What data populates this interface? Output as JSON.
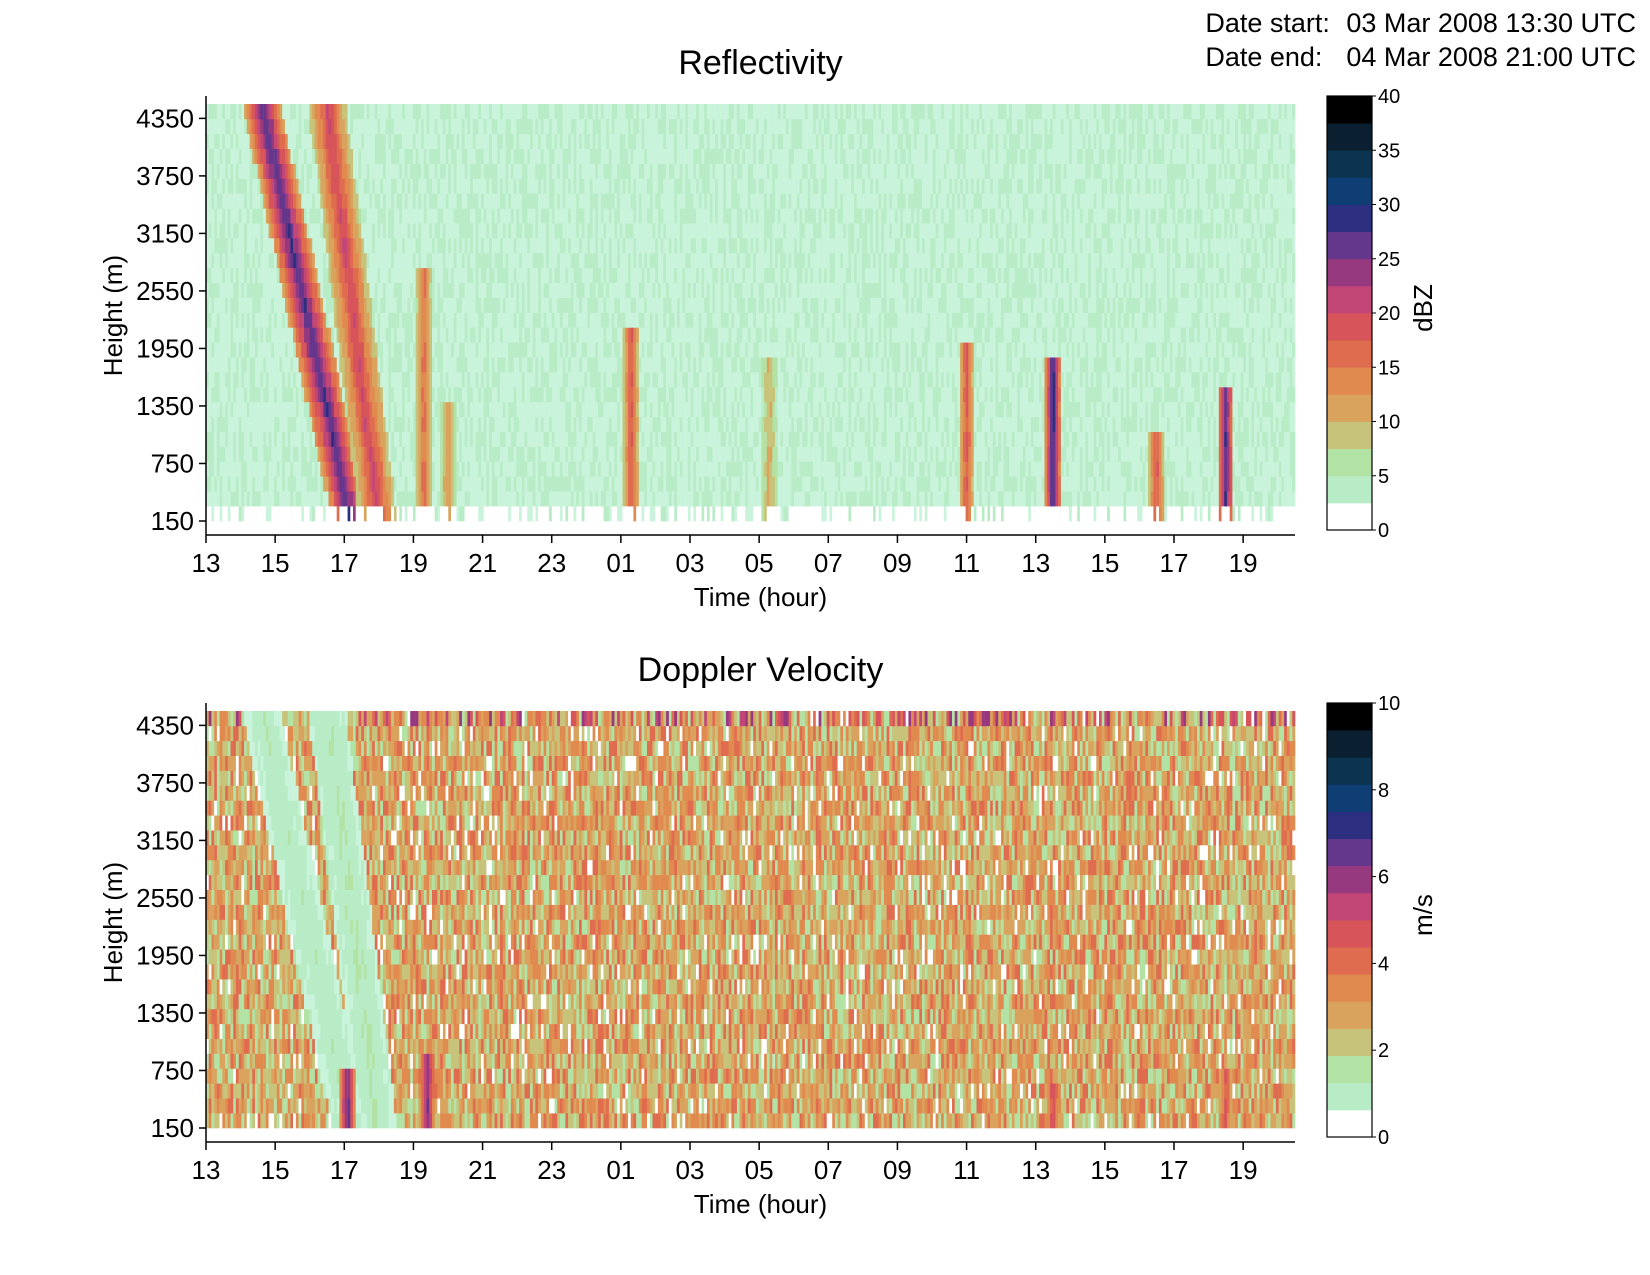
{
  "header": {
    "date_start_label": "Date start:",
    "date_start_value": "03 Mar 2008 13:30 UTC",
    "date_end_label": "Date end:",
    "date_end_value": "04 Mar 2008 21:00 UTC"
  },
  "chart_data": [
    {
      "type": "heatmap",
      "title": "Reflectivity",
      "xlabel": "Time (hour)",
      "ylabel": "Height (m)",
      "colorbar_label": "dBZ",
      "x_range_hours_since_13utc": [
        0,
        31.5
      ],
      "x_tick_labels": [
        "13",
        "15",
        "17",
        "19",
        "21",
        "23",
        "01",
        "03",
        "05",
        "07",
        "09",
        "11",
        "13",
        "15",
        "17",
        "19"
      ],
      "y_range": [
        150,
        4500
      ],
      "y_tick_labels": [
        "150",
        "750",
        "1350",
        "1950",
        "2550",
        "3150",
        "3750",
        "4350"
      ],
      "y_ticks": [
        150,
        750,
        1350,
        1950,
        2550,
        3150,
        3750,
        4350
      ],
      "colorbar_range": [
        0,
        40
      ],
      "colorbar_ticks": [
        "0",
        "5",
        "10",
        "15",
        "20",
        "25",
        "30",
        "35",
        "40"
      ],
      "background_value": 4,
      "features": [
        {
          "desc": "slanted rain band",
          "t_top": 1.6,
          "t_bottom": 4.2,
          "z_top": 4500,
          "z_bottom": 150,
          "value": 30
        },
        {
          "desc": "slanted rain band",
          "t_top": 3.5,
          "t_bottom": 5.0,
          "z_top": 4500,
          "z_bottom": 150,
          "value": 22
        },
        {
          "desc": "shower",
          "t": 6.3,
          "z_top": 2800,
          "value": 18
        },
        {
          "desc": "shower",
          "t": 7.0,
          "z_top": 1400,
          "value": 14
        },
        {
          "desc": "shower",
          "t": 12.3,
          "z_top": 2200,
          "value": 20
        },
        {
          "desc": "shower",
          "t": 16.3,
          "z_top": 1800,
          "value": 12
        },
        {
          "desc": "shower",
          "t": 22.0,
          "z_top": 2000,
          "value": 20
        },
        {
          "desc": "shower",
          "t": 24.5,
          "z_top": 1800,
          "value": 32
        },
        {
          "desc": "shower",
          "t": 27.5,
          "z_top": 1100,
          "value": 20
        },
        {
          "desc": "shower",
          "t": 29.5,
          "z_top": 1600,
          "value": 30
        }
      ]
    },
    {
      "type": "heatmap",
      "title": "Doppler Velocity",
      "xlabel": "Time (hour)",
      "ylabel": "Height (m)",
      "colorbar_label": "m/s",
      "x_range_hours_since_13utc": [
        0,
        31.5
      ],
      "x_tick_labels": [
        "13",
        "15",
        "17",
        "19",
        "21",
        "23",
        "01",
        "03",
        "05",
        "07",
        "09",
        "11",
        "13",
        "15",
        "17",
        "19"
      ],
      "y_range": [
        150,
        4500
      ],
      "y_tick_labels": [
        "150",
        "750",
        "1350",
        "1950",
        "2550",
        "3150",
        "3750",
        "4350"
      ],
      "y_ticks": [
        150,
        750,
        1350,
        1950,
        2550,
        3150,
        3750,
        4350
      ],
      "colorbar_range": [
        0,
        10
      ],
      "colorbar_ticks": [
        "0",
        "2",
        "4",
        "6",
        "8",
        "10"
      ],
      "background_value": 3.3,
      "features": [
        {
          "desc": "slow-fall band",
          "t_top": 1.6,
          "t_bottom": 4.2,
          "z_top": 4500,
          "z_bottom": 150,
          "value": 1.3
        },
        {
          "desc": "slow-fall band",
          "t_top": 3.5,
          "t_bottom": 5.0,
          "z_top": 4500,
          "z_bottom": 150,
          "value": 1.5
        },
        {
          "desc": "fast-fall rain",
          "t": 4.1,
          "z_top": 800,
          "value": 7.5
        },
        {
          "desc": "fast-fall rain",
          "t": 6.4,
          "z_top": 1000,
          "value": 7.0
        },
        {
          "desc": "slow-fall patch",
          "t": 16.5,
          "z_top": 1900,
          "value": 1.5
        },
        {
          "desc": "fast-fall rain",
          "t": 24.5,
          "z_top": 600,
          "value": 5.5
        },
        {
          "desc": "fast-fall rain",
          "t": 29.5,
          "z_top": 800,
          "value": 5.0
        }
      ]
    }
  ]
}
